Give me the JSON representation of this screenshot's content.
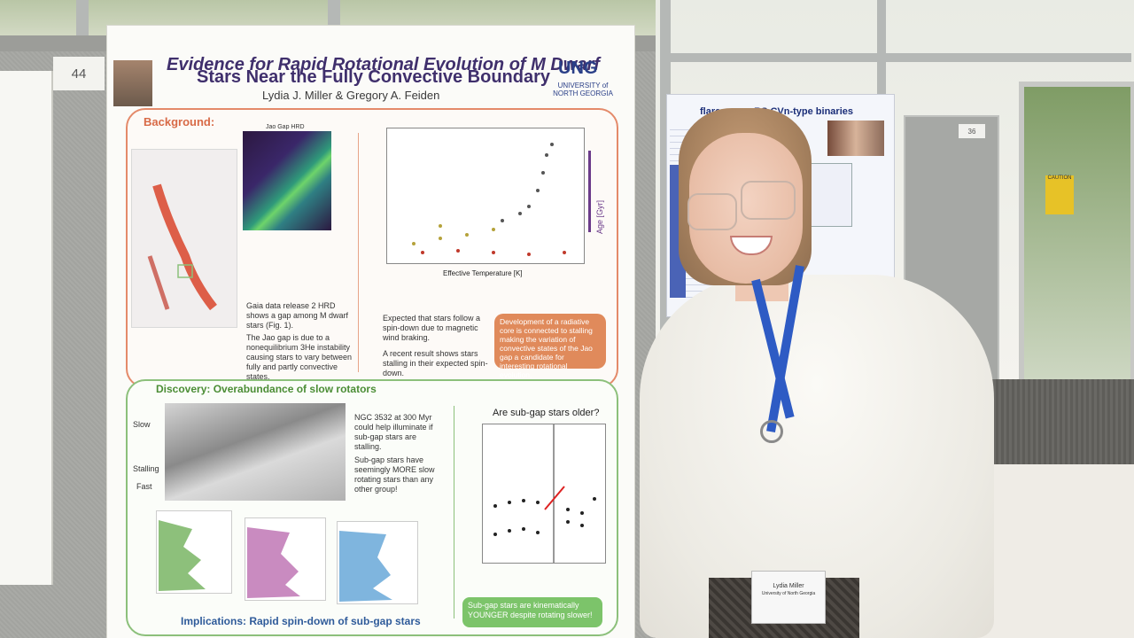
{
  "scene": {
    "board_number_left": "44",
    "board_number_right": "36"
  },
  "poster": {
    "title_line1": "Evidence for Rapid Rotational Evolution of M Dwarf",
    "title_line2": "Stars Near the Fully Convective Boundary",
    "authors": "Lydia J. Miller & Gregory A. Feiden",
    "logo_text": "UNG",
    "logo_subtext": "UNIVERSITY of NORTH GEORGIA",
    "sections": {
      "background": "Background:",
      "discovery": "Discovery: Overabundance of slow rotators",
      "implications": "Implications: Rapid spin-down of sub-gap stars"
    },
    "jaogap_label": "Jao Gap HRD",
    "age_label": "Age [Gyr]",
    "xlabel_temp": "Effective Temperature [K]",
    "bg_bullets": [
      "Gaia data release 2 HRD shows a gap among M dwarf stars (Fig. 1).",
      "The Jao gap is due to a nonequilibrium 3He instability causing stars to vary between fully and partly convective states.",
      "Expected that stars follow a spin-down due to magnetic wind braking.",
      "A recent result shows stars stalling in their expected spin-down."
    ],
    "callout_orange": "Development of a radiative core is connected to stalling making the variation of convective states of the Jao gap a candidate for interesting rotational evolution.",
    "disc_bullets": [
      "NGC 3532 at 300 Myr could help illuminate if sub-gap stars are stalling.",
      "Sub-gap stars have seemingly MORE slow rotating stars than any other group!"
    ],
    "question": "Are sub-gap stars older?",
    "callout_green": "Sub-gap stars are kinematically YOUNGER despite rotating slower!",
    "heatmap_labels": [
      "Slow",
      "Stalling",
      "Fast"
    ]
  },
  "right_poster": {
    "title": "flares on ... RS CVn-type binaries",
    "caution": "CAUTION"
  },
  "badge": {
    "name": "Lydia Miller",
    "org": "University of North Georgia"
  }
}
